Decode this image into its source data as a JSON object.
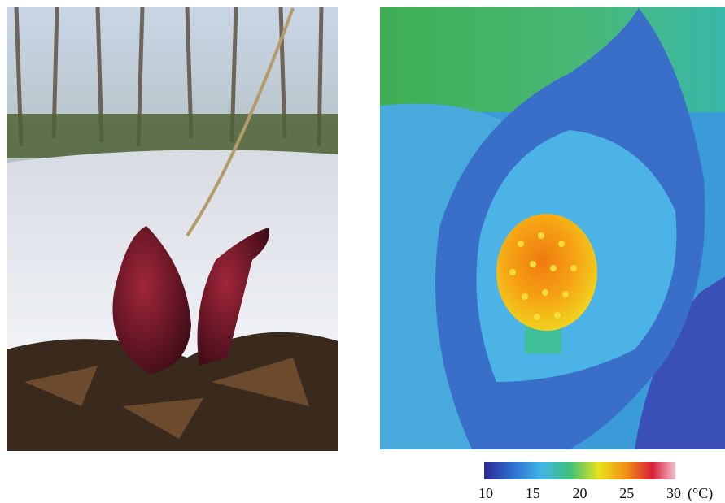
{
  "thermal_image": {
    "colorbar": {
      "ticks": [
        10,
        15,
        20,
        25,
        30
      ],
      "unit": "(°C)"
    }
  }
}
